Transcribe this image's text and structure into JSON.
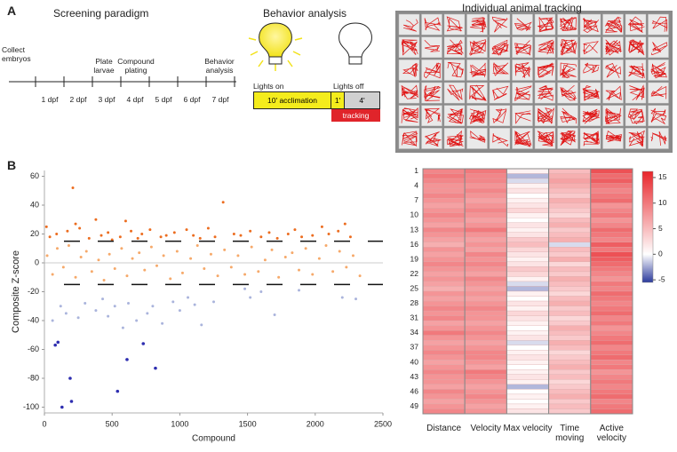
{
  "panel_labels": [
    "A",
    "B"
  ],
  "paradigm": {
    "title": "Screening paradigm",
    "events": [
      "Collect embryos",
      "Plate larvae",
      "Compound plating",
      "Behavior analysis"
    ],
    "days": [
      "1 dpf",
      "2 dpf",
      "3 dpf",
      "4 dpf",
      "5 dpf",
      "6 dpf",
      "7 dpf"
    ]
  },
  "behavior": {
    "title": "Behavior analysis",
    "lights_on": "Lights on",
    "lights_off": "Lights off",
    "acclimation": "10' acclimation",
    "short": "1'",
    "long": "4'",
    "tracking": "tracking"
  },
  "tracking": {
    "title": "Individual animal tracking"
  },
  "chart_data": [
    {
      "type": "scatter",
      "y_label": "Composite Z-score",
      "x_label": "Compound",
      "xlim": [
        0,
        2500
      ],
      "ylim": [
        -104,
        64
      ],
      "xticks": [
        0,
        500,
        1000,
        1500,
        2000,
        2500
      ],
      "yticks": [
        -100,
        -80,
        -60,
        -40,
        -20,
        0,
        20,
        40,
        60
      ],
      "thresholds": [
        15,
        -15
      ],
      "series": [
        {
          "color": "#f6a96a",
          "x": [
            20,
            60,
            95,
            140,
            180,
            230,
            270,
            310,
            350,
            400,
            440,
            480,
            520,
            570,
            610,
            650,
            700,
            740,
            790,
            830,
            880,
            930,
            980,
            1020,
            1080,
            1130,
            1180,
            1230,
            1280,
            1330,
            1380,
            1430,
            1480,
            1530,
            1580,
            1630,
            1680,
            1730,
            1780,
            1830,
            1880,
            1930,
            1980,
            2030,
            2080,
            2130,
            2180,
            2230,
            2280,
            2330
          ],
          "values": [
            5,
            -8,
            10,
            -3,
            12,
            -10,
            4,
            8,
            -6,
            2,
            -12,
            6,
            -4,
            10,
            -9,
            3,
            7,
            -5,
            11,
            -2,
            5,
            -11,
            8,
            -7,
            3,
            12,
            -4,
            6,
            -9,
            9,
            -3,
            5,
            -8,
            11,
            -6,
            2,
            9,
            -10,
            4,
            7,
            -5,
            10,
            -8,
            3,
            12,
            -6,
            8,
            -3,
            5,
            -9
          ]
        },
        {
          "color": "#ec6d20",
          "x": [
            15,
            40,
            90,
            170,
            210,
            230,
            260,
            330,
            380,
            420,
            470,
            500,
            560,
            600,
            640,
            690,
            720,
            780,
            860,
            900,
            960,
            1050,
            1100,
            1150,
            1210,
            1260,
            1320,
            1400,
            1450,
            1520,
            1600,
            1660,
            1720,
            1800,
            1850,
            1900,
            1980,
            2050,
            2100,
            2170,
            2220,
            2260
          ],
          "values": [
            25,
            18,
            20,
            22,
            52,
            27,
            24,
            17,
            30,
            19,
            21,
            16,
            18,
            29,
            22,
            17,
            20,
            23,
            18,
            19,
            21,
            23,
            19,
            17,
            24,
            18,
            42,
            20,
            19,
            22,
            18,
            21,
            17,
            20,
            23,
            18,
            19,
            25,
            20,
            22,
            27,
            18
          ]
        },
        {
          "color": "#aab4dc",
          "x": [
            60,
            120,
            160,
            250,
            300,
            380,
            430,
            470,
            520,
            580,
            620,
            680,
            760,
            800,
            870,
            950,
            1000,
            1060,
            1110,
            1160,
            1250,
            1480,
            1520,
            1600,
            1700,
            1880,
            2200,
            2300
          ],
          "values": [
            -40,
            -30,
            -35,
            -38,
            -28,
            -33,
            -25,
            -37,
            -30,
            -45,
            -28,
            -40,
            -35,
            -30,
            -42,
            -27,
            -33,
            -24,
            -29,
            -43,
            -27,
            -18,
            -24,
            -20,
            -36,
            -19,
            -24,
            -25
          ]
        },
        {
          "color": "#2e2eb0",
          "x": [
            80,
            100,
            130,
            190,
            200,
            540,
            610,
            730,
            820
          ],
          "values": [
            -57,
            -55,
            -100,
            -80,
            -96,
            -89,
            -67,
            -56,
            -73
          ]
        }
      ]
    },
    {
      "type": "heatmap",
      "categories": [
        "1",
        null,
        null,
        "4",
        null,
        null,
        "7",
        null,
        null,
        "10",
        null,
        null,
        "13",
        null,
        null,
        "16",
        null,
        null,
        "19",
        null,
        null,
        "22",
        null,
        null,
        "25",
        null,
        null,
        "28",
        null,
        null,
        "31",
        null,
        null,
        "34",
        null,
        null,
        "37",
        null,
        null,
        "40",
        null,
        null,
        "43",
        null,
        null,
        "46",
        null,
        null,
        "49",
        null
      ],
      "clim": [
        -5.5,
        16.2
      ],
      "center": 0,
      "colors": [
        "#2b3a9c",
        "#ffffff",
        "#e8262b"
      ],
      "cticks": [
        -5,
        0,
        5,
        10,
        15
      ],
      "series": [
        {
          "name": "Distance",
          "values": [
            9,
            10,
            9,
            8,
            8,
            9,
            8,
            7,
            8,
            9,
            8,
            7,
            9,
            8,
            7,
            6,
            8,
            7,
            8,
            9,
            8,
            7,
            8,
            7,
            6,
            8,
            7,
            8,
            9,
            8,
            9,
            7,
            8,
            10,
            8,
            7,
            8,
            9,
            8,
            7,
            8,
            9,
            8,
            8,
            7,
            9,
            8,
            7,
            8,
            9
          ]
        },
        {
          "name": "Velocity",
          "values": [
            10,
            9,
            9,
            8,
            9,
            8,
            7,
            8,
            9,
            8,
            7,
            8,
            10,
            8,
            7,
            8,
            7,
            9,
            8,
            9,
            8,
            7,
            9,
            8,
            7,
            8,
            7,
            8,
            9,
            8,
            8,
            7,
            8,
            9,
            8,
            7,
            8,
            9,
            9,
            8,
            7,
            10,
            9,
            8,
            7,
            8,
            9,
            8,
            7,
            8
          ]
        },
        {
          "name": "Max velocity",
          "values": [
            1,
            -2,
            -1,
            1,
            2,
            0,
            1,
            2,
            3,
            1,
            0,
            2,
            1,
            2,
            4,
            5,
            3,
            2,
            1,
            2,
            4,
            3,
            1,
            -1,
            -2,
            1,
            0,
            2,
            1,
            3,
            2,
            1,
            0,
            1,
            2,
            -1,
            0,
            1,
            2,
            1,
            0,
            1,
            2,
            1,
            -2,
            0,
            1,
            0,
            1,
            2
          ]
        },
        {
          "name": "Time moving",
          "values": [
            5,
            6,
            7,
            6,
            5,
            4,
            6,
            5,
            4,
            3,
            5,
            6,
            4,
            5,
            6,
            -1,
            5,
            4,
            6,
            3,
            5,
            4,
            6,
            5,
            4,
            3,
            5,
            6,
            4,
            5,
            3,
            4,
            6,
            5,
            4,
            6,
            5,
            3,
            4,
            5,
            6,
            4,
            5,
            3,
            4,
            5,
            6,
            4,
            5,
            4
          ]
        },
        {
          "name": "Active velocity",
          "values": [
            13,
            11,
            12,
            10,
            9,
            10,
            11,
            8,
            9,
            10,
            8,
            9,
            11,
            10,
            9,
            12,
            10,
            13,
            12,
            11,
            10,
            9,
            8,
            10,
            9,
            11,
            10,
            9,
            10,
            11,
            9,
            10,
            8,
            9,
            10,
            11,
            9,
            10,
            11,
            9,
            10,
            8,
            9,
            10,
            9,
            10,
            11,
            9,
            10,
            11
          ]
        }
      ]
    }
  ]
}
